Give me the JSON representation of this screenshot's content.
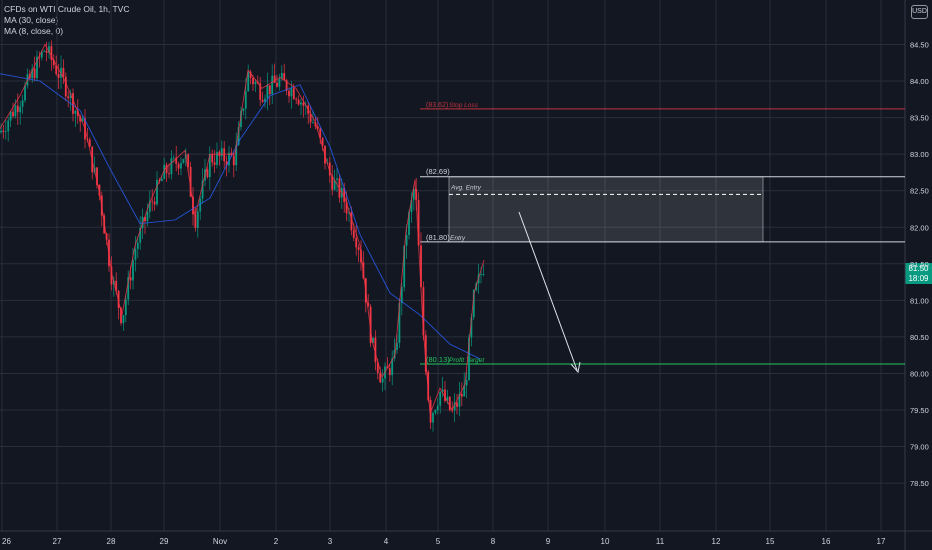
{
  "legend": {
    "title": "CFDs on WTI Crude Oil, 1h, TVC",
    "ma1": "MA (30, close)",
    "ma2": "MA (8, close, 0)"
  },
  "currency": "USD",
  "last_price": {
    "value": "81.50",
    "countdown": "18:09"
  },
  "colors": {
    "background": "#131722",
    "grid": "#2a2e39",
    "up": "#089981",
    "down": "#f23645",
    "ma30": "#2962ff",
    "ma8": "#f23645",
    "profit_target": "#22c55e",
    "stop_loss": "#c2333d",
    "zone_border": "#d1d4dc"
  },
  "chart_data": {
    "type": "candlestick",
    "symbol": "CFDs on WTI Crude Oil",
    "interval": "1h",
    "source": "TVC",
    "y_range": [
      78.2,
      84.9
    ],
    "y_ticks": [
      "84.50",
      "84.00",
      "83.50",
      "83.00",
      "82.50",
      "82.00",
      "81.50",
      "81.00",
      "80.50",
      "80.00",
      "79.50",
      "79.00",
      "78.50"
    ],
    "x_ticks": [
      "26",
      "27",
      "28",
      "29",
      "Nov",
      "2",
      "3",
      "4",
      "5",
      "8",
      "9",
      "10",
      "11",
      "12",
      "15",
      "16",
      "17"
    ],
    "close_path": [
      {
        "x": 0,
        "y": 83.3
      },
      {
        "x": 20,
        "y": 83.75
      },
      {
        "x": 45,
        "y": 84.45
      },
      {
        "x": 65,
        "y": 83.95
      },
      {
        "x": 85,
        "y": 83.3
      },
      {
        "x": 100,
        "y": 82.4
      },
      {
        "x": 112,
        "y": 81.3
      },
      {
        "x": 122,
        "y": 80.75
      },
      {
        "x": 135,
        "y": 81.7
      },
      {
        "x": 150,
        "y": 82.3
      },
      {
        "x": 165,
        "y": 82.75
      },
      {
        "x": 185,
        "y": 83.0
      },
      {
        "x": 195,
        "y": 82.1
      },
      {
        "x": 210,
        "y": 82.95
      },
      {
        "x": 235,
        "y": 82.95
      },
      {
        "x": 248,
        "y": 84.1
      },
      {
        "x": 262,
        "y": 83.85
      },
      {
        "x": 280,
        "y": 84.0
      },
      {
        "x": 296,
        "y": 83.85
      },
      {
        "x": 315,
        "y": 83.4
      },
      {
        "x": 330,
        "y": 82.7
      },
      {
        "x": 345,
        "y": 82.35
      },
      {
        "x": 360,
        "y": 81.7
      },
      {
        "x": 372,
        "y": 80.4
      },
      {
        "x": 382,
        "y": 79.9
      },
      {
        "x": 395,
        "y": 80.2
      },
      {
        "x": 406,
        "y": 81.9
      },
      {
        "x": 415,
        "y": 82.6
      },
      {
        "x": 423,
        "y": 80.6
      },
      {
        "x": 430,
        "y": 79.4
      },
      {
        "x": 440,
        "y": 79.75
      },
      {
        "x": 452,
        "y": 79.45
      },
      {
        "x": 465,
        "y": 79.8
      },
      {
        "x": 474,
        "y": 81.05
      },
      {
        "x": 484,
        "y": 81.5
      }
    ],
    "ma30_path": [
      {
        "x": 0,
        "y": 84.1
      },
      {
        "x": 40,
        "y": 84.0
      },
      {
        "x": 80,
        "y": 83.6
      },
      {
        "x": 110,
        "y": 82.8
      },
      {
        "x": 140,
        "y": 82.05
      },
      {
        "x": 175,
        "y": 82.1
      },
      {
        "x": 210,
        "y": 82.4
      },
      {
        "x": 240,
        "y": 83.2
      },
      {
        "x": 270,
        "y": 83.8
      },
      {
        "x": 300,
        "y": 83.95
      },
      {
        "x": 330,
        "y": 83.1
      },
      {
        "x": 360,
        "y": 81.9
      },
      {
        "x": 390,
        "y": 81.1
      },
      {
        "x": 420,
        "y": 80.8
      },
      {
        "x": 450,
        "y": 80.4
      },
      {
        "x": 480,
        "y": 80.2
      }
    ],
    "levels": [
      {
        "name": "Stop Loss",
        "price": 83.62,
        "label": "(83.62)"
      },
      {
        "name": "",
        "price": 82.69,
        "label": "(82.69)"
      },
      {
        "name": "Avg. Entry",
        "price": 82.45,
        "label": ""
      },
      {
        "name": "Entry",
        "price": 81.8,
        "label": "(81.80)"
      },
      {
        "name": "Profit Target",
        "price": 80.13,
        "label": "(80.13)"
      }
    ]
  }
}
